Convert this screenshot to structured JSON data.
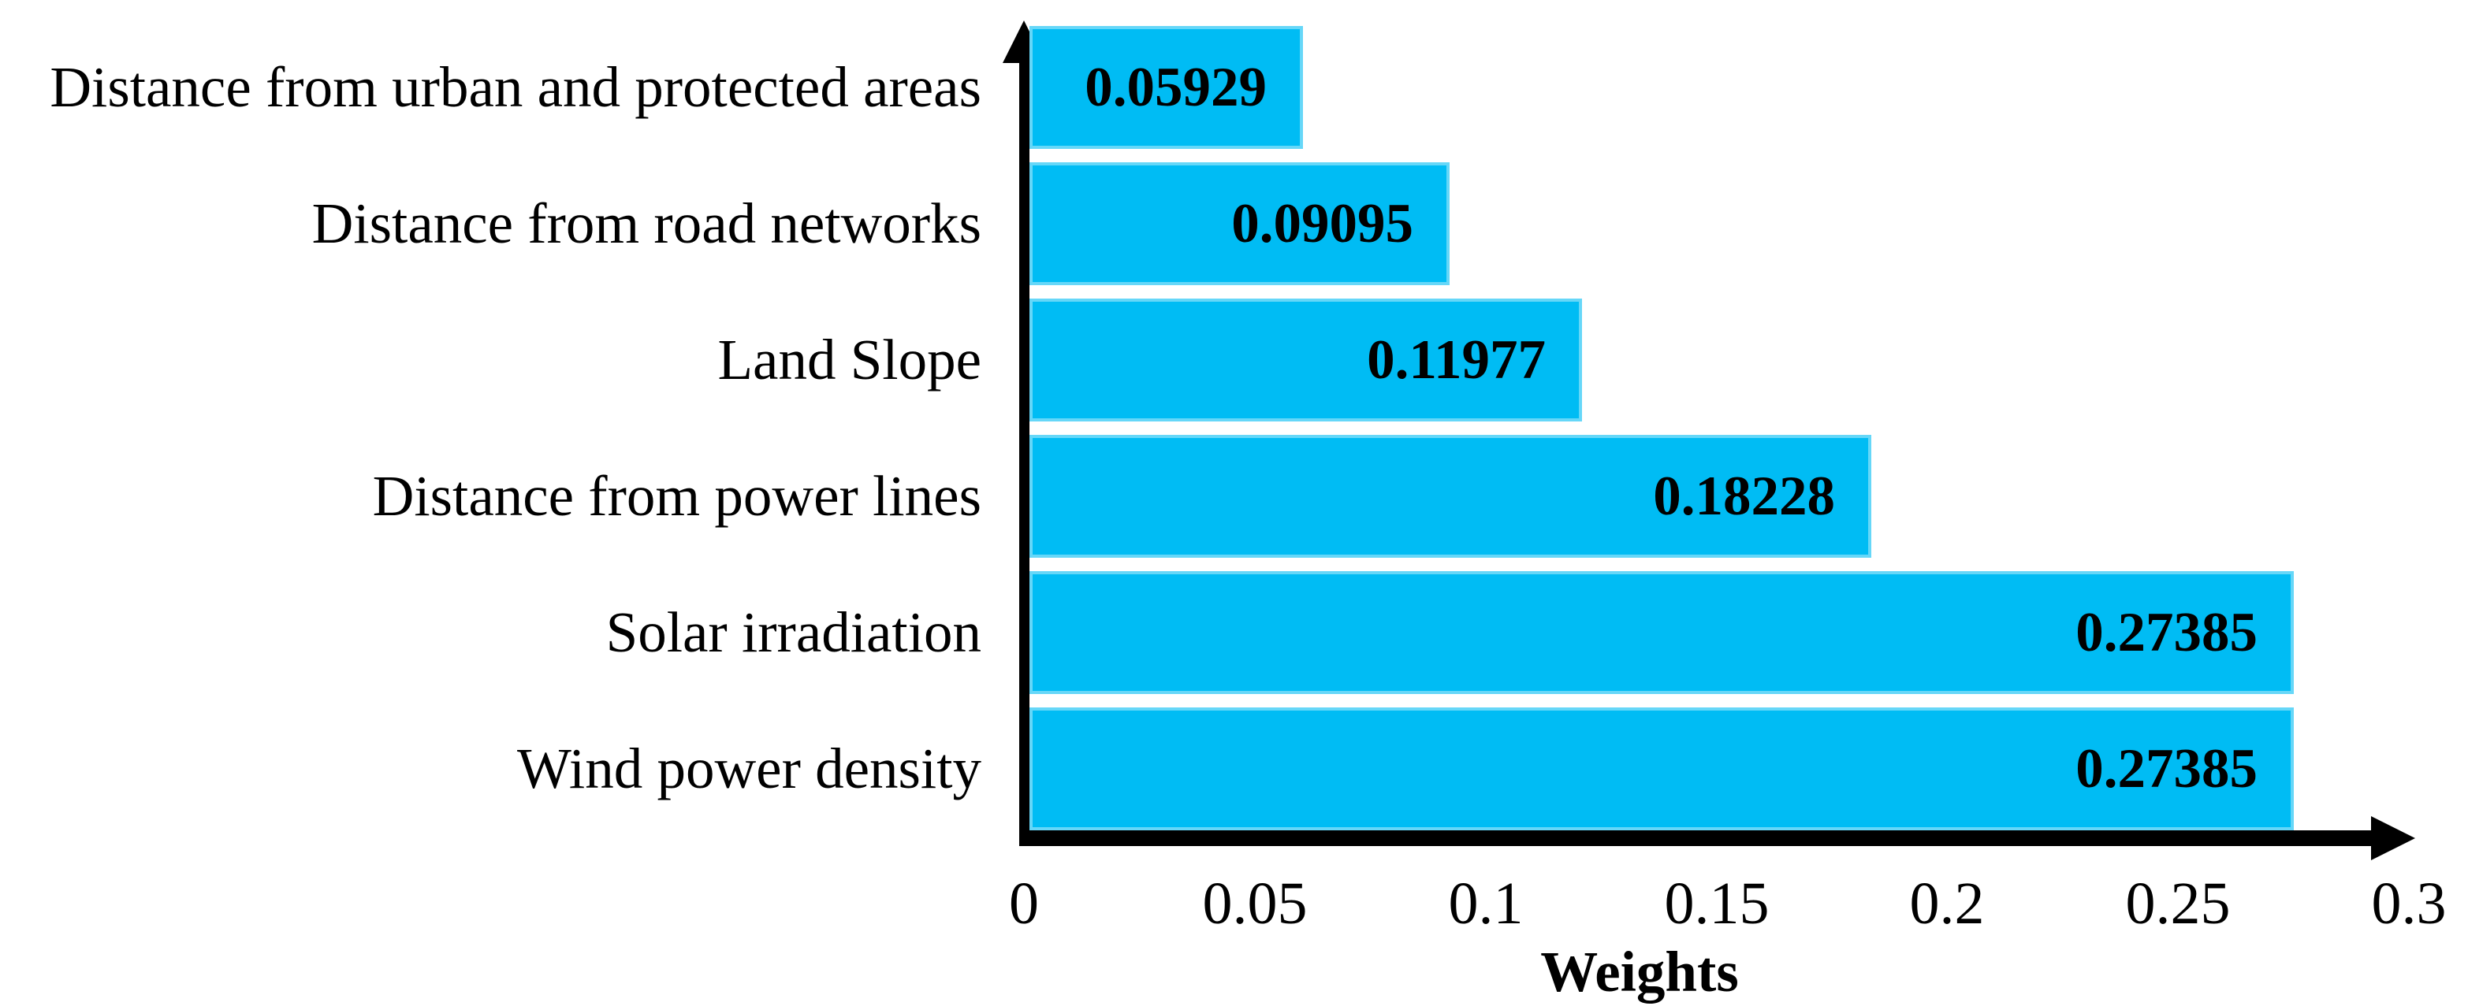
{
  "chart_data": {
    "type": "bar",
    "orientation": "horizontal",
    "categories": [
      "Distance from urban and protected areas",
      "Distance from road networks",
      "Land Slope",
      "Distance from power lines",
      "Solar irradiation",
      "Wind power density"
    ],
    "values": [
      0.05929,
      0.09095,
      0.11977,
      0.18228,
      0.27385,
      0.27385
    ],
    "value_labels": [
      "0.05929",
      "0.09095",
      "0.11977",
      "0.18228",
      "0.27385",
      "0.27385"
    ],
    "title": "",
    "xlabel": "Weights",
    "ylabel": "",
    "xlim": [
      0,
      0.3
    ],
    "xticks": [
      "0",
      "0.05",
      "0.1",
      "0.15",
      "0.2",
      "0.25",
      "0.3"
    ],
    "xtick_values": [
      0,
      0.05,
      0.1,
      0.15,
      0.2,
      0.25,
      0.3
    ],
    "grid": false,
    "legend": null,
    "bar_color": "#00BCF4",
    "bar_edge_color": "#7DDFF9",
    "axis_color": "#000000",
    "text_color": "#000000",
    "background_color": "#FFFFFF"
  }
}
